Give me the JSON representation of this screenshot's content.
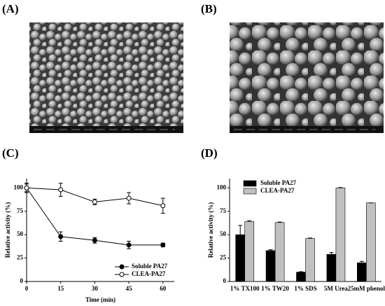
{
  "panels": [
    "(A)",
    "(B)",
    "(C)",
    "(D)"
  ],
  "chart_data": [
    {
      "type": "line",
      "x_label": "Time (min)",
      "y_label": "Relative activity (%)",
      "x": [
        0,
        15,
        30,
        45,
        60
      ],
      "series": [
        {
          "name": "Soluble PA27",
          "color": "#000000",
          "marker_fill": "#000000",
          "values": [
            100,
            48,
            44,
            39,
            39
          ],
          "errors": [
            4,
            5,
            3,
            4,
            2
          ]
        },
        {
          "name": "CLEA-PA27",
          "color": "#000000",
          "marker_fill": "#ffffff",
          "values": [
            100,
            98,
            85,
            89,
            81
          ],
          "errors": [
            5,
            7,
            3,
            6,
            8
          ]
        }
      ],
      "xlim": [
        0,
        65
      ],
      "xticks": [
        0,
        15,
        30,
        45,
        60
      ],
      "ylim": [
        0,
        110
      ],
      "yticks": [
        0,
        25,
        50,
        75,
        100
      ],
      "legend": "lower right"
    },
    {
      "type": "bar",
      "y_label": "Relative activity (%)",
      "categories": [
        "1% TX100",
        "1% TW20",
        "1% SDS",
        "5M Urea",
        "25mM phenol"
      ],
      "series": [
        {
          "name": "Soluble PA27",
          "color": "#000000",
          "values": [
            50,
            33,
            10,
            29,
            20
          ],
          "errors": [
            10,
            1,
            0.5,
            2,
            1.5
          ]
        },
        {
          "name": "CLEA-PA27",
          "color": "#c0c0c0",
          "values": [
            64,
            63,
            46,
            100,
            84
          ],
          "errors": [
            1,
            0.5,
            0.5,
            0.5,
            0
          ]
        }
      ],
      "ylim": [
        0,
        110
      ],
      "yticks": [
        0,
        25,
        50,
        75,
        100
      ],
      "legend": "upper left"
    }
  ]
}
